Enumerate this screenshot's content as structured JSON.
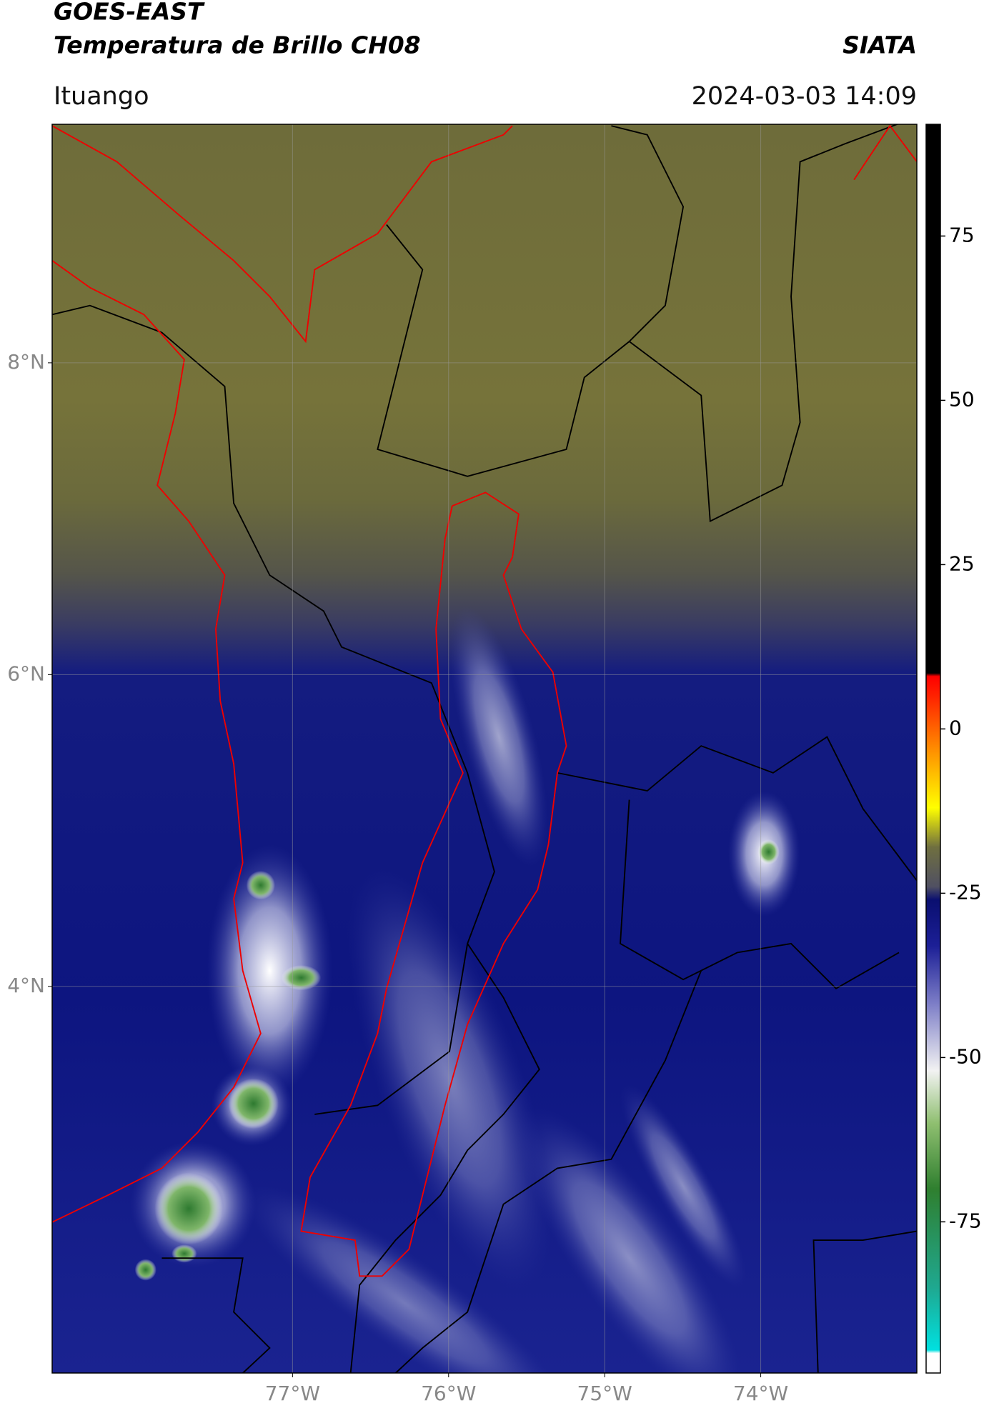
{
  "header": {
    "title": "GOES-EAST",
    "subtitle": "Temperatura de Brillo CH08",
    "source": "SIATA",
    "region": "Ituango",
    "timestamp": "2024-03-03 14:09"
  },
  "map": {
    "xlim": [
      -78.54,
      -73.0
    ],
    "ylim": [
      1.52,
      9.53
    ],
    "xticks": [
      {
        "value": -77,
        "label": "77°W"
      },
      {
        "value": -76,
        "label": "76°W"
      },
      {
        "value": -75,
        "label": "75°W"
      },
      {
        "value": -74,
        "label": "74°W"
      }
    ],
    "yticks": [
      {
        "value": 4,
        "label": "4°N"
      },
      {
        "value": 6,
        "label": "6°N"
      },
      {
        "value": 8,
        "label": "8°N"
      }
    ],
    "grid": true
  },
  "colorbar": {
    "ylim": [
      -98,
      92
    ],
    "yticks": [
      -75,
      -50,
      -25,
      0,
      25,
      50,
      75
    ],
    "stops": [
      {
        "value": -98,
        "color": "#ffffff"
      },
      {
        "value": -95,
        "color": "#ffffff"
      },
      {
        "value": -94.5,
        "color": "#00e0e0"
      },
      {
        "value": -85,
        "color": "#1fa890"
      },
      {
        "value": -70,
        "color": "#2f7f2f"
      },
      {
        "value": -60,
        "color": "#8fbf70"
      },
      {
        "value": -52,
        "color": "#f2f2f2"
      },
      {
        "value": -42,
        "color": "#7f80c8"
      },
      {
        "value": -33,
        "color": "#1c1f96"
      },
      {
        "value": -26,
        "color": "#0a0f70"
      },
      {
        "value": -24,
        "color": "#505062"
      },
      {
        "value": -18,
        "color": "#6f6f40"
      },
      {
        "value": -12,
        "color": "#ffff00"
      },
      {
        "value": -4,
        "color": "#ff9900"
      },
      {
        "value": 5,
        "color": "#ff2200"
      },
      {
        "value": 8,
        "color": "#ff0000"
      },
      {
        "value": 8.5,
        "color": "#000000"
      },
      {
        "value": 92,
        "color": "#000000"
      }
    ]
  }
}
